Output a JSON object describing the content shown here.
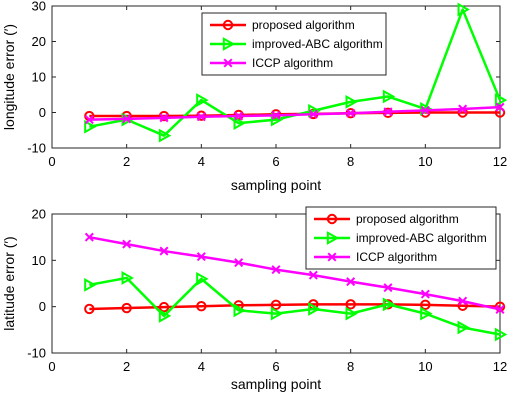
{
  "chart_data": [
    {
      "type": "line",
      "xlabel": "sampling point",
      "ylabel": "longitude error (′)",
      "xlim": [
        0,
        12
      ],
      "ylim": [
        -10,
        30
      ],
      "xticks": [
        0,
        2,
        4,
        6,
        8,
        10,
        12
      ],
      "yticks": [
        -10,
        0,
        10,
        20,
        30
      ],
      "x": [
        1,
        2,
        3,
        4,
        5,
        6,
        7,
        8,
        9,
        10,
        11,
        12
      ],
      "legend_position": "top-right",
      "series": [
        {
          "name": "proposed algorithm",
          "color": "#ff0000",
          "marker": "circle",
          "values": [
            -1.0,
            -1.0,
            -1.0,
            -0.9,
            -0.7,
            -0.5,
            -0.4,
            -0.2,
            -0.1,
            0.0,
            0.0,
            0.0
          ]
        },
        {
          "name": "improved-ABC algorithm",
          "color": "#00ff00",
          "marker": "triangle-right",
          "values": [
            -4.0,
            -2.0,
            -6.5,
            3.5,
            -3.0,
            -2.0,
            0.5,
            3.0,
            4.5,
            1.0,
            29.0,
            3.5
          ]
        },
        {
          "name": "ICCP algorithm",
          "color": "#ff00ff",
          "marker": "x",
          "values": [
            -2.0,
            -1.8,
            -1.5,
            -1.2,
            -1.0,
            -0.8,
            -0.5,
            -0.2,
            0.2,
            0.6,
            1.0,
            1.5
          ]
        }
      ]
    },
    {
      "type": "line",
      "xlabel": "sampling point",
      "ylabel": "latitude error (′)",
      "xlim": [
        0,
        12
      ],
      "ylim": [
        -10,
        20
      ],
      "xticks": [
        0,
        2,
        4,
        6,
        8,
        10,
        12
      ],
      "yticks": [
        -10,
        0,
        10,
        20
      ],
      "x": [
        1,
        2,
        3,
        4,
        5,
        6,
        7,
        8,
        9,
        10,
        11,
        12
      ],
      "legend_position": "top-right",
      "series": [
        {
          "name": "proposed algorithm",
          "color": "#ff0000",
          "marker": "circle",
          "values": [
            -0.5,
            -0.3,
            -0.1,
            0.1,
            0.3,
            0.4,
            0.5,
            0.5,
            0.5,
            0.4,
            0.2,
            0.0
          ]
        },
        {
          "name": "improved-ABC algorithm",
          "color": "#00ff00",
          "marker": "triangle-right",
          "values": [
            4.7,
            6.2,
            -2.0,
            6.0,
            -0.8,
            -1.5,
            -0.5,
            -1.5,
            0.5,
            -1.5,
            -4.5,
            -6.0
          ]
        },
        {
          "name": "ICCP algorithm",
          "color": "#ff00ff",
          "marker": "x",
          "values": [
            15.0,
            13.5,
            12.0,
            10.8,
            9.5,
            8.0,
            6.8,
            5.4,
            4.1,
            2.7,
            1.2,
            -0.6
          ]
        }
      ]
    }
  ]
}
